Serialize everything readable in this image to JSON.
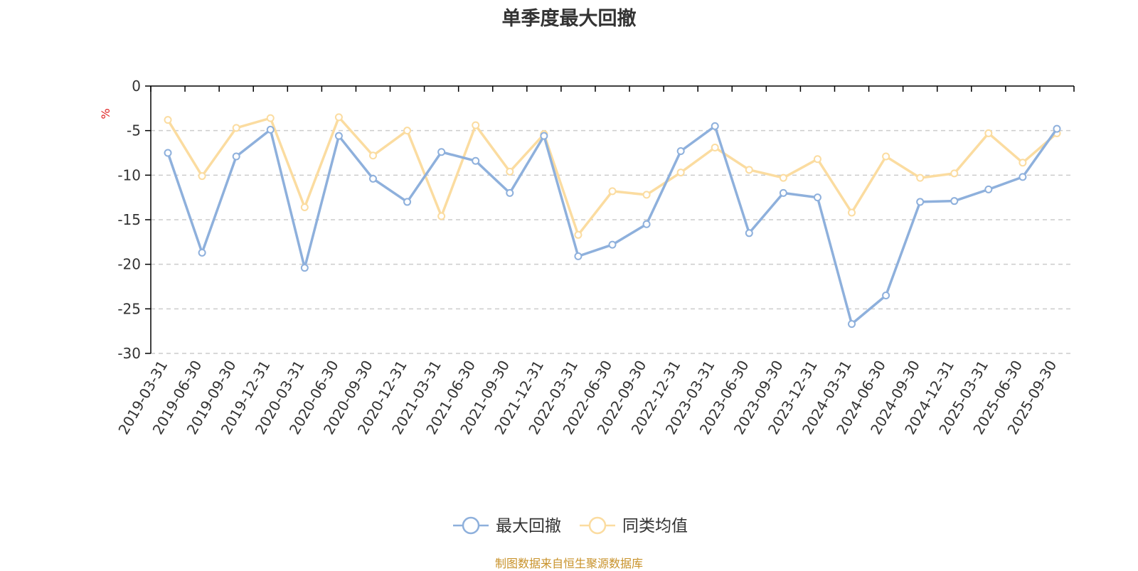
{
  "colors": {
    "series1": "#8eb0dc",
    "series2": "#fbdca0",
    "unit": "#e02020",
    "source": "#c8922a",
    "grid": "#cccccc",
    "axis": "#000000"
  },
  "source_note": "制图数据来自恒生聚源数据库",
  "chart_data": {
    "type": "line",
    "title": "单季度最大回撤",
    "ylabel": "%",
    "ylim": [
      -30,
      0
    ],
    "yticks": [
      0,
      -5,
      -10,
      -15,
      -20,
      -25,
      -30
    ],
    "grid": "horizontal-dashed",
    "legend_position": "bottom-center",
    "categories": [
      "2019-03-31",
      "2019-06-30",
      "2019-09-30",
      "2019-12-31",
      "2020-03-31",
      "2020-06-30",
      "2020-09-30",
      "2020-12-31",
      "2021-03-31",
      "2021-06-30",
      "2021-09-30",
      "2021-12-31",
      "2022-03-31",
      "2022-06-30",
      "2022-09-30",
      "2022-12-31",
      "2023-03-31",
      "2023-06-30",
      "2023-09-30",
      "2023-12-31",
      "2024-03-31",
      "2024-06-30",
      "2024-09-30",
      "2024-12-31",
      "2025-03-31",
      "2025-06-30",
      "2025-09-30"
    ],
    "series": [
      {
        "name": "最大回撤",
        "values": [
          -7.5,
          -18.7,
          -7.9,
          -4.9,
          -20.4,
          -5.6,
          -10.4,
          -13.0,
          -7.4,
          -8.4,
          -12.0,
          -5.6,
          -19.1,
          -17.8,
          -15.5,
          -7.3,
          -4.5,
          -16.5,
          -12.0,
          -12.5,
          -26.7,
          -23.5,
          -13.0,
          -12.9,
          -11.6,
          -10.2,
          -4.8
        ]
      },
      {
        "name": "同类均值",
        "values": [
          -3.8,
          -10.1,
          -4.7,
          -3.6,
          -13.6,
          -3.5,
          -7.8,
          -5.0,
          -14.6,
          -4.4,
          -9.6,
          -5.4,
          -16.7,
          -11.8,
          -12.2,
          -9.7,
          -6.9,
          -9.4,
          -10.3,
          -8.2,
          -14.2,
          -7.9,
          -10.3,
          -9.8,
          -5.3,
          -8.6,
          -5.3
        ]
      }
    ]
  }
}
